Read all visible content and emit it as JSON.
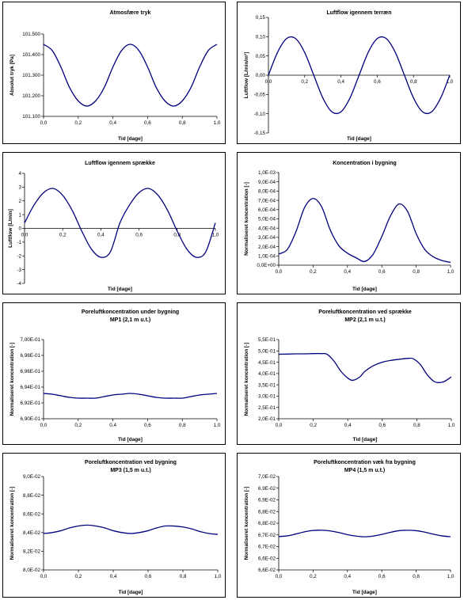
{
  "chart_data": [
    {
      "type": "line",
      "title": "Atmosfære tryk",
      "subtitle": "",
      "xlabel": "Tid [dage]",
      "ylabel": "Absolut tryk [Pa]",
      "xlim": [
        0,
        1
      ],
      "ylim": [
        101100,
        101500
      ],
      "xticks": [
        "0,0",
        "0,2",
        "0,4",
        "0,6",
        "0,8",
        "1,0"
      ],
      "yticks": [
        "101.100",
        "101.200",
        "101.300",
        "101.400",
        "101.500"
      ],
      "x_axis_position": "bottom",
      "series": [
        {
          "x": [
            0,
            0.05,
            0.1,
            0.15,
            0.2,
            0.25,
            0.3,
            0.35,
            0.4,
            0.45,
            0.5,
            0.55,
            0.6,
            0.65,
            0.7,
            0.75,
            0.8,
            0.85,
            0.9,
            0.95,
            1.0
          ],
          "y": [
            101450,
            101420,
            101340,
            101240,
            101175,
            101150,
            101175,
            101240,
            101340,
            101420,
            101450,
            101420,
            101340,
            101240,
            101175,
            101150,
            101175,
            101240,
            101340,
            101420,
            101450
          ]
        }
      ]
    },
    {
      "type": "line",
      "title": "Luftflow igennem terræn",
      "subtitle": "",
      "xlabel": "Tid [dage]",
      "ylabel": "Luftflow [L/min/m²]",
      "xlim": [
        0,
        1
      ],
      "ylim": [
        -0.15,
        0.15
      ],
      "xticks": [
        "0,0",
        "0,2",
        "0,4",
        "0,6",
        "0,8",
        "1,0"
      ],
      "yticks": [
        "-0,15",
        "-0,10",
        "-0,05",
        "0,00",
        "0,05",
        "0,10",
        "0,15"
      ],
      "x_axis_position": "zero",
      "series": [
        {
          "x": [
            0,
            0.05,
            0.1,
            0.15,
            0.2,
            0.25,
            0.3,
            0.35,
            0.4,
            0.45,
            0.5,
            0.55,
            0.6,
            0.65,
            0.7,
            0.75,
            0.8,
            0.85,
            0.9,
            0.95,
            1.0
          ],
          "y": [
            0,
            0.059,
            0.095,
            0.095,
            0.059,
            0,
            -0.059,
            -0.095,
            -0.095,
            -0.059,
            0,
            0.059,
            0.095,
            0.095,
            0.059,
            0,
            -0.059,
            -0.095,
            -0.095,
            -0.059,
            0
          ]
        }
      ]
    },
    {
      "type": "line",
      "title": "Luftflow igennem sprække",
      "subtitle": "",
      "xlabel": "Tid [dage]",
      "ylabel": "Luftflow [L/min]",
      "xlim": [
        0,
        1
      ],
      "ylim": [
        -4,
        4
      ],
      "xticks": [
        "0,0",
        "0,2",
        "0,4",
        "0,6",
        "0,8",
        "1,0"
      ],
      "yticks": [
        "-4",
        "-3",
        "-2",
        "-1",
        "0",
        "1",
        "2",
        "3",
        "4"
      ],
      "x_axis_position": "zero",
      "series": [
        {
          "x": [
            0,
            0.05,
            0.1,
            0.15,
            0.2,
            0.25,
            0.3,
            0.35,
            0.4,
            0.45,
            0.5,
            0.55,
            0.6,
            0.65,
            0.7,
            0.75,
            0.8,
            0.85,
            0.9,
            0.95,
            1.0
          ],
          "y": [
            0.4,
            1.7,
            2.6,
            2.9,
            2.4,
            1.3,
            -0.2,
            -1.5,
            -2.1,
            -1.7,
            0.4,
            1.7,
            2.6,
            2.9,
            2.4,
            1.3,
            -0.2,
            -1.5,
            -2.1,
            -1.7,
            0.4
          ]
        }
      ]
    },
    {
      "type": "line",
      "title": "Koncentration i bygning",
      "subtitle": "",
      "xlabel": "Tid [dage]",
      "ylabel": "Normaliseret koncentration [-]",
      "xlim": [
        0,
        1
      ],
      "ylim": [
        0,
        0.001
      ],
      "xticks": [
        "0,0",
        "0,2",
        "0,4",
        "0,6",
        "0,8",
        "1,0"
      ],
      "yticks": [
        "0,0E+00",
        "1,0E-04",
        "2,0E-04",
        "3,0E-04",
        "4,0E-04",
        "5,0E-04",
        "6,0E-04",
        "7,0E-04",
        "8,0E-04",
        "9,0E-04",
        "1,0E-03"
      ],
      "x_axis_position": "bottom",
      "series": [
        {
          "x": [
            0,
            0.05,
            0.1,
            0.15,
            0.2,
            0.25,
            0.3,
            0.35,
            0.4,
            0.45,
            0.5,
            0.55,
            0.6,
            0.65,
            0.7,
            0.75,
            0.8,
            0.85,
            0.9,
            0.95,
            1.0
          ],
          "y": [
            0.00012,
            0.00017,
            0.00036,
            0.00062,
            0.00072,
            0.00063,
            0.00038,
            0.00021,
            0.00013,
            8e-05,
            4e-05,
            0.00012,
            0.00031,
            0.00053,
            0.00066,
            0.00058,
            0.00034,
            0.00017,
            9e-05,
            5e-05,
            3e-05
          ]
        }
      ]
    },
    {
      "type": "line",
      "title": "Poreluftkoncentration under bygning",
      "subtitle": "MP1 (2,1 m u.t.)",
      "xlabel": "Tid [dage]",
      "ylabel": "Normaliseret koncentration [-]",
      "xlim": [
        0,
        1
      ],
      "ylim": [
        0.69,
        0.7
      ],
      "xticks": [
        "0,0",
        "0,2",
        "0,4",
        "0,6",
        "0,8",
        "1,0"
      ],
      "yticks": [
        "6,90E-01",
        "6,92E-01",
        "6,94E-01",
        "6,96E-01",
        "6,98E-01",
        "7,00E-01"
      ],
      "x_axis_position": "bottom",
      "series": [
        {
          "x": [
            0,
            0.05,
            0.1,
            0.15,
            0.2,
            0.25,
            0.3,
            0.35,
            0.4,
            0.45,
            0.5,
            0.55,
            0.6,
            0.65,
            0.7,
            0.75,
            0.8,
            0.85,
            0.9,
            0.95,
            1.0
          ],
          "y": [
            0.6932,
            0.6931,
            0.6929,
            0.6927,
            0.6926,
            0.6926,
            0.6926,
            0.6928,
            0.693,
            0.6931,
            0.6932,
            0.6931,
            0.6929,
            0.6927,
            0.6926,
            0.6926,
            0.6926,
            0.6928,
            0.693,
            0.6931,
            0.6932
          ]
        }
      ]
    },
    {
      "type": "line",
      "title": "Poreluftkoncentration ved sprække",
      "subtitle": "MP2 (2,1 m u.t.)",
      "xlabel": "Tid [dage]",
      "ylabel": "Normaliseret koncentration [-]",
      "xlim": [
        0,
        1
      ],
      "ylim": [
        0.2,
        0.55
      ],
      "xticks": [
        "0,0",
        "0,2",
        "0,4",
        "0,6",
        "0,8",
        "1,0"
      ],
      "yticks": [
        "2,0E-01",
        "2,5E-01",
        "3,0E-01",
        "3,5E-01",
        "4,0E-01",
        "4,5E-01",
        "5,0E-01",
        "5,5E-01"
      ],
      "x_axis_position": "bottom",
      "series": [
        {
          "x": [
            0,
            0.05,
            0.1,
            0.15,
            0.2,
            0.25,
            0.28,
            0.32,
            0.36,
            0.4,
            0.43,
            0.47,
            0.5,
            0.55,
            0.6,
            0.65,
            0.7,
            0.75,
            0.78,
            0.82,
            0.86,
            0.9,
            0.93,
            0.96,
            1.0
          ],
          "y": [
            0.485,
            0.486,
            0.487,
            0.487,
            0.488,
            0.488,
            0.485,
            0.455,
            0.41,
            0.38,
            0.37,
            0.385,
            0.41,
            0.435,
            0.45,
            0.458,
            0.463,
            0.467,
            0.465,
            0.44,
            0.395,
            0.365,
            0.36,
            0.365,
            0.385
          ]
        }
      ]
    },
    {
      "type": "line",
      "title": "Poreluftkoncentration ved bygning",
      "subtitle": "MP3 (1,5 m u.t.)",
      "xlabel": "Tid [dage]",
      "ylabel": "Normaliseret koncentration [-]",
      "xlim": [
        0,
        1
      ],
      "ylim": [
        0.08,
        0.09
      ],
      "xticks": [
        "0,0",
        "0,2",
        "0,4",
        "0,6",
        "0,8",
        "1,0"
      ],
      "yticks": [
        "8,0E-02",
        "8,2E-02",
        "8,4E-02",
        "8,6E-02",
        "8,8E-02",
        "9,0E-02"
      ],
      "x_axis_position": "bottom",
      "series": [
        {
          "x": [
            0,
            0.05,
            0.1,
            0.15,
            0.2,
            0.25,
            0.3,
            0.35,
            0.4,
            0.45,
            0.5,
            0.55,
            0.6,
            0.65,
            0.7,
            0.75,
            0.8,
            0.85,
            0.9,
            0.95,
            1.0
          ],
          "y": [
            0.0839,
            0.084,
            0.0842,
            0.0845,
            0.0847,
            0.0848,
            0.0847,
            0.0845,
            0.0842,
            0.084,
            0.0839,
            0.084,
            0.0842,
            0.0845,
            0.0847,
            0.0847,
            0.0846,
            0.0844,
            0.0841,
            0.0839,
            0.0838
          ]
        }
      ]
    },
    {
      "type": "line",
      "title": "Poreluftkoncentration væk fra bygning",
      "subtitle": "MP4 (1,5 m u.t.)",
      "xlabel": "Tid [dage]",
      "ylabel": "Normaliseret koncentration [-]",
      "xlim": [
        0,
        1
      ],
      "ylim": [
        0.066,
        0.07
      ],
      "xticks": [
        "0,0",
        "0,2",
        "0,4",
        "0,6",
        "0,8",
        "1,0"
      ],
      "yticks": [
        "6,6E-02",
        "6,6E-02",
        "6,7E-02",
        "6,7E-02",
        "6,8E-02",
        "6,8E-02",
        "6,9E-02",
        "6,9E-02",
        "7,0E-02"
      ],
      "x_axis_position": "bottom",
      "series": [
        {
          "x": [
            0,
            0.05,
            0.1,
            0.15,
            0.2,
            0.25,
            0.3,
            0.35,
            0.4,
            0.45,
            0.5,
            0.55,
            0.6,
            0.65,
            0.7,
            0.75,
            0.8,
            0.85,
            0.9,
            0.95,
            1.0
          ],
          "y": [
            0.06743,
            0.06746,
            0.06754,
            0.06763,
            0.06769,
            0.0677,
            0.06767,
            0.0676,
            0.06751,
            0.06745,
            0.06742,
            0.06745,
            0.06752,
            0.06761,
            0.06768,
            0.0677,
            0.06768,
            0.06762,
            0.06753,
            0.06746,
            0.06742
          ]
        }
      ]
    }
  ],
  "style": {
    "line_color": "#00007f",
    "axis_color": "#000000"
  }
}
